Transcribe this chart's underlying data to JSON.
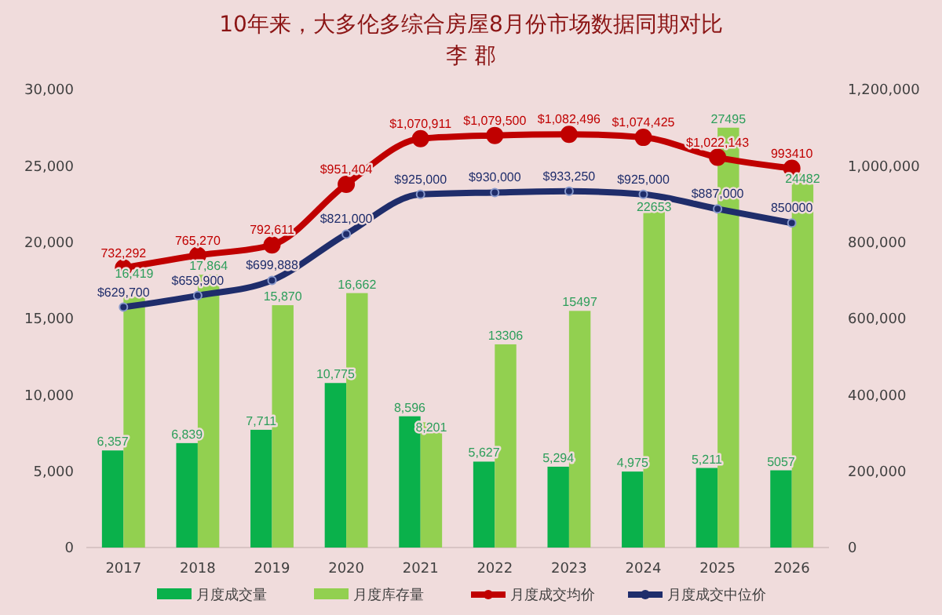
{
  "chart_data": {
    "type": "bar",
    "title": "10年来，大多伦多综合房屋8月份市场数据同期对比",
    "subtitle": "李 郡",
    "categories": [
      "2017",
      "2018",
      "2019",
      "2020",
      "2021",
      "2022",
      "2023",
      "2024",
      "2025",
      "2026"
    ],
    "series": [
      {
        "name": "月度成交量",
        "color": "#0ab14b",
        "values": [
          6357,
          6839,
          7711,
          10775,
          8596,
          5627,
          5294,
          4975,
          5211,
          5057
        ],
        "value_labels": [
          "6,357",
          "6,839",
          "7,711",
          "10,775",
          "8,596",
          "5,627",
          "5,294",
          "4,975",
          "5,211",
          "5057"
        ]
      },
      {
        "name": "月度库存量",
        "color": "#92d050",
        "values": [
          16419,
          17864,
          15870,
          16662,
          8201,
          13306,
          15497,
          22653,
          27495,
          24482
        ],
        "value_labels": [
          "16,419",
          "17,864",
          "15,870",
          "16,662",
          "8,201",
          "13306",
          "15497",
          "22653",
          "27495",
          "24482"
        ]
      },
      {
        "name": "月度成交均价",
        "type": "line",
        "axis": "y2",
        "color": "#c00000",
        "marker": "circle",
        "values": [
          732292,
          765270,
          792611,
          951404,
          1070911,
          1079500,
          1082496,
          1074425,
          1022143,
          993410
        ],
        "value_labels": [
          "732,292",
          "765,270",
          "792,611",
          "$951,404",
          "$1,070,911",
          "$1,079,500",
          "$1,082,496",
          "$1,074,425",
          "$1,022,143",
          "993410"
        ]
      },
      {
        "name": "月度成交中位价",
        "type": "line",
        "axis": "y2",
        "color": "#1f2d6b",
        "marker": "circle",
        "values": [
          629700,
          659900,
          699888,
          821000,
          925000,
          930000,
          933250,
          925000,
          887000,
          850000
        ],
        "value_labels": [
          "$629,700",
          "$659,900",
          "$699,888",
          "$821,000",
          "$925,000",
          "$930,000",
          "$933,250",
          "$925,000",
          "$887,000",
          "850000"
        ]
      }
    ],
    "ylim": [
      0,
      30000
    ],
    "yticks": [
      0,
      {
        "value": 5000,
        "label": "5,000"
      },
      {
        "value": 10000,
        "label": "10,000"
      },
      {
        "value": 15000,
        "label": "15,000"
      },
      {
        "value": 20000,
        "label": "20,000"
      },
      {
        "value": 25000,
        "label": "25,000"
      },
      {
        "value": 30000,
        "label": "30,000"
      }
    ],
    "y2lim": [
      0,
      1200000
    ],
    "y2ticks": [
      0,
      {
        "value": 200000,
        "label": "200,000"
      },
      {
        "value": 400000,
        "label": "400,000"
      },
      {
        "value": 600000,
        "label": "600,000"
      },
      {
        "value": 800000,
        "label": "800,000"
      },
      {
        "value": 1000000,
        "label": "1,000,000"
      },
      {
        "value": 1200000,
        "label": "1,200,000"
      }
    ],
    "grid": false,
    "legend": "bottom"
  }
}
